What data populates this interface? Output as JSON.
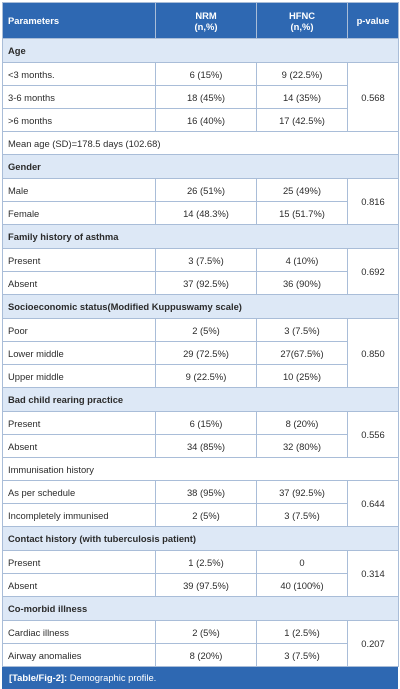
{
  "header": {
    "param": "Parameters",
    "nrm": "NRM\n(n,%)",
    "hfnc": "HFNC\n(n,%)",
    "pvalue": "p-value"
  },
  "sections": [
    {
      "title": "Age",
      "rows": [
        {
          "label": "<3 months.",
          "nrm": "6 (15%)",
          "hfnc": "9 (22.5%)"
        },
        {
          "label": "3-6 months",
          "nrm": "18 (45%)",
          "hfnc": "14 (35%)"
        },
        {
          "label": ">6 months",
          "nrm": "16 (40%)",
          "hfnc": "17 (42.5%)"
        }
      ],
      "p": "0.568",
      "note": "Mean age (SD)=178.5 days (102.68)"
    },
    {
      "title": "Gender",
      "rows": [
        {
          "label": "Male",
          "nrm": "26 (51%)",
          "hfnc": "25 (49%)"
        },
        {
          "label": "Female",
          "nrm": "14 (48.3%)",
          "hfnc": "15 (51.7%)"
        }
      ],
      "p": "0.816"
    },
    {
      "title": "Family history of asthma",
      "rows": [
        {
          "label": "Present",
          "nrm": "3 (7.5%)",
          "hfnc": "4 (10%)"
        },
        {
          "label": "Absent",
          "nrm": "37 (92.5%)",
          "hfnc": "36 (90%)"
        }
      ],
      "p": "0.692"
    },
    {
      "title": "Socioeconomic status(Modified Kuppuswamy scale)",
      "rows": [
        {
          "label": "Poor",
          "nrm": "2 (5%)",
          "hfnc": "3 (7.5%)"
        },
        {
          "label": "Lower middle",
          "nrm": "29 (72.5%)",
          "hfnc": "27(67.5%)"
        },
        {
          "label": "Upper middle",
          "nrm": "9 (22.5%)",
          "hfnc": "10 (25%)"
        }
      ],
      "p": "0.850"
    },
    {
      "title": "Bad child rearing practice",
      "rows": [
        {
          "label": "Present",
          "nrm": "6 (15%)",
          "hfnc": "8 (20%)"
        },
        {
          "label": "Absent",
          "nrm": "34 (85%)",
          "hfnc": "32 (80%)"
        }
      ],
      "p": "0.556"
    },
    {
      "title": "Immunisation history",
      "plainTitle": true,
      "rows": [
        {
          "label": "As per schedule",
          "nrm": "38 (95%)",
          "hfnc": "37 (92.5%)"
        },
        {
          "label": "Incompletely immunised",
          "nrm": "2 (5%)",
          "hfnc": "3 (7.5%)"
        }
      ],
      "p": "0.644"
    },
    {
      "title": "Contact history (with tuberculosis patient)",
      "rows": [
        {
          "label": "Present",
          "nrm": "1 (2.5%)",
          "hfnc": "0"
        },
        {
          "label": "Absent",
          "nrm": "39 (97.5%)",
          "hfnc": "40 (100%)"
        }
      ],
      "p": "0.314"
    },
    {
      "title": "Co-morbid illness",
      "rows": [
        {
          "label": "Cardiac illness",
          "nrm": "2 (5%)",
          "hfnc": "1 (2.5%)"
        },
        {
          "label": "Airway anomalies",
          "nrm": "8 (20%)",
          "hfnc": "3 (7.5%)"
        }
      ],
      "p": "0.207"
    }
  ],
  "caption": {
    "ref": "[Table/Fig-2]:",
    "text": " Demographic profile."
  }
}
